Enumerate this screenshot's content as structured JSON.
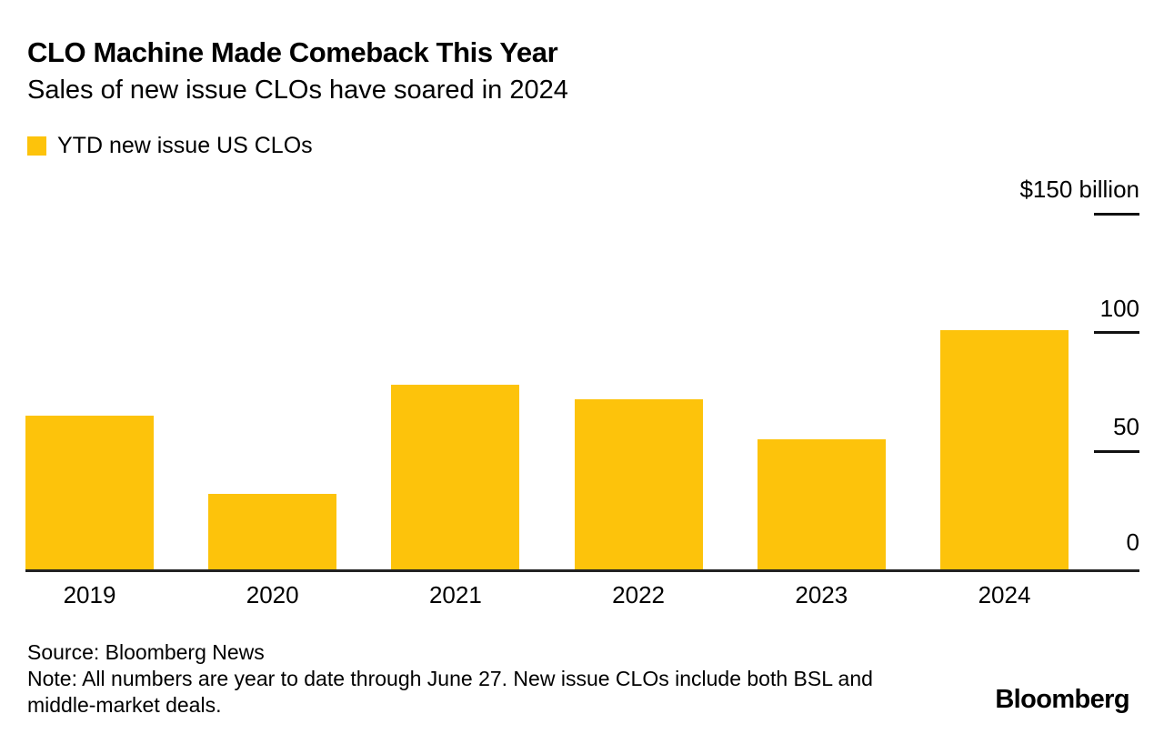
{
  "header": {
    "title": "CLO Machine Made Comeback This Year",
    "subtitle": "Sales of new issue CLOs have soared in 2024"
  },
  "legend": {
    "label": "YTD new issue US CLOs",
    "swatch_color": "#FDC30B"
  },
  "chart_data": {
    "type": "bar",
    "categories": [
      "2019",
      "2020",
      "2021",
      "2022",
      "2023",
      "2024"
    ],
    "values": [
      65,
      32,
      78,
      72,
      55,
      101
    ],
    "series_name": "YTD new issue US CLOs",
    "title": "CLO Machine Made Comeback This Year",
    "subtitle": "Sales of new issue CLOs have soared in 2024",
    "xlabel": "",
    "ylabel": "$ billion",
    "ylim": [
      0,
      150
    ],
    "y_ticks": [
      {
        "value": 150,
        "label": "$150 billion",
        "tick_line": true
      },
      {
        "value": 100,
        "label": "100",
        "tick_line": true
      },
      {
        "value": 50,
        "label": "50",
        "tick_line": true
      },
      {
        "value": 0,
        "label": "0",
        "tick_line": false
      }
    ],
    "grid": false,
    "legend_position": "top-left",
    "y_axis_side": "right",
    "bar_color": "#FDC30B",
    "axis_line_color": "#222222"
  },
  "footer": {
    "source": "Source: Bloomberg News",
    "note": "Note: All numbers are year to date through June 27. New issue CLOs include both BSL and middle-market deals.",
    "logo": "Bloomberg"
  }
}
